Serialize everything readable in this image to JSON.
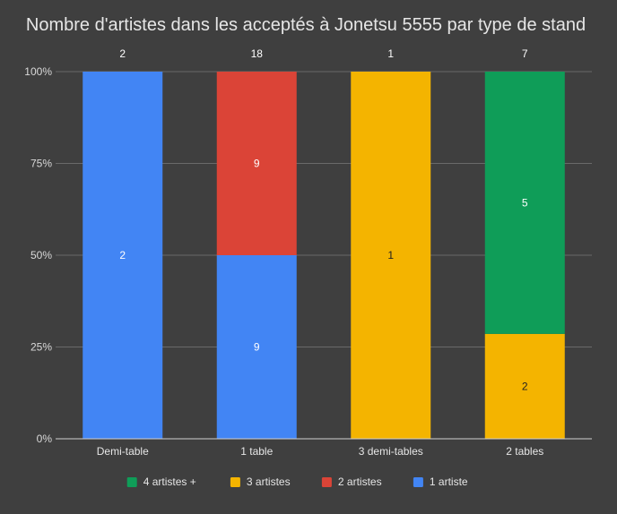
{
  "chart_data": {
    "type": "bar",
    "stacked": "percent",
    "title": "Nombre d'artistes dans les acceptés à Jonetsu 5555 par type de stand",
    "xlabel": "",
    "ylabel": "",
    "categories": [
      "Demi-table",
      "1 table",
      "3 demi-tables",
      "2 tables"
    ],
    "totals": [
      "2",
      "18",
      "1",
      "7"
    ],
    "y_ticks": [
      "0%",
      "25%",
      "50%",
      "75%",
      "100%"
    ],
    "ylim": [
      0,
      100
    ],
    "grid": true,
    "legend_position": "bottom",
    "series": [
      {
        "name": "1 artiste",
        "color": "#4285f4",
        "label_color": "#ffffff",
        "values": [
          2,
          9,
          0,
          0
        ]
      },
      {
        "name": "2 artistes",
        "color": "#db4437",
        "label_color": "#ffffff",
        "values": [
          0,
          9,
          0,
          0
        ]
      },
      {
        "name": "3 artistes",
        "color": "#f4b400",
        "label_color": "#222222",
        "values": [
          0,
          0,
          1,
          2
        ]
      },
      {
        "name": "4 artistes +",
        "color": "#0f9d58",
        "label_color": "#ffffff",
        "values": [
          0,
          0,
          0,
          5
        ]
      }
    ],
    "legend_order": [
      "4 artistes +",
      "3 artistes",
      "2 artistes",
      "1 artiste"
    ]
  }
}
